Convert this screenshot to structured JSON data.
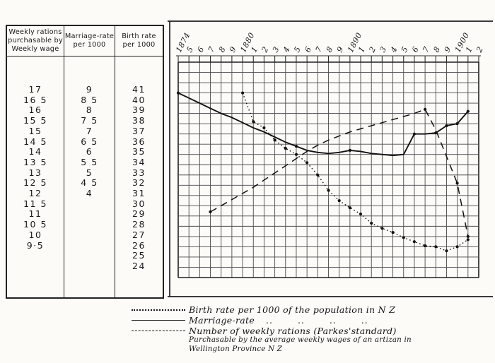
{
  "figure": {
    "description": "Scanned statistical diagram: birth rate, marriage rate and purchasing power of wages, New Zealand 1874-1902",
    "paper_color": "#fcfbf8",
    "ink_color": "#1a1a1a"
  },
  "table": {
    "columns": [
      {
        "header": "Weekly rations\npurchasable by\nWeekly wage",
        "values": [
          "17",
          "16 5",
          "16",
          "15 5",
          "15",
          "14 5",
          "14",
          "13 5",
          "13",
          "12 5",
          "12",
          "11 5",
          "11",
          "10 5",
          "10",
          "9·5"
        ]
      },
      {
        "header": "Marriage-rate\nper 1000",
        "values": [
          "9",
          "8 5",
          "8",
          "7 5",
          "7",
          "6 5",
          "6",
          "5 5",
          "5",
          "4 5",
          "4"
        ]
      },
      {
        "header": "Birth rate\nper 1000",
        "values": [
          "41",
          "40",
          "39",
          "38",
          "37",
          "36",
          "35",
          "34",
          "33",
          "32",
          "31",
          "30",
          "29",
          "28",
          "27",
          "26",
          "25",
          "24"
        ]
      }
    ]
  },
  "chart_data": {
    "type": "line",
    "x_ticks": [
      "1874",
      "5",
      "6",
      "7",
      "8",
      "9",
      "1880",
      "1",
      "2",
      "3",
      "4",
      "5",
      "6",
      "7",
      "8",
      "9",
      "1890",
      "1",
      "2",
      "3",
      "4",
      "5",
      "6",
      "7",
      "8",
      "9",
      "1900",
      "1",
      "2"
    ],
    "x_years": [
      1874,
      1902
    ],
    "grid": {
      "columns": 28,
      "rows": 21,
      "visible": true
    },
    "scales_note": "Grid rows shared by three scales aligned per table row: rations 17..9.5, marriage 9..4, birth 41..24",
    "legend_position": "bottom",
    "series": [
      {
        "name": "Birth rate per 1000",
        "unit": "birth",
        "style": "dotted",
        "dot_years": "all",
        "points": [
          [
            1880,
            41
          ],
          [
            1881,
            38.2
          ],
          [
            1882,
            37.6
          ],
          [
            1883,
            36.4
          ],
          [
            1884,
            35.6
          ],
          [
            1885,
            35
          ],
          [
            1886,
            34.2
          ],
          [
            1887,
            33
          ],
          [
            1888,
            31.5
          ],
          [
            1889,
            30.5
          ],
          [
            1890,
            29.8
          ],
          [
            1891,
            29.2
          ],
          [
            1892,
            28.3
          ],
          [
            1893,
            27.8
          ],
          [
            1894,
            27.4
          ],
          [
            1895,
            26.9
          ],
          [
            1896,
            26.5
          ],
          [
            1897,
            26.1
          ],
          [
            1898,
            26
          ],
          [
            1899,
            25.6
          ],
          [
            1900,
            26
          ],
          [
            1901,
            26.7
          ]
        ]
      },
      {
        "name": "Marriage-rate per 1000",
        "unit": "marriage",
        "style": "solid",
        "dot_years": [
          1874,
          1885,
          1890,
          1896,
          1898,
          1899,
          1900,
          1901
        ],
        "points": [
          [
            1874,
            9
          ],
          [
            1875,
            8.75
          ],
          [
            1876,
            8.5
          ],
          [
            1877,
            8.25
          ],
          [
            1878,
            8
          ],
          [
            1879,
            7.8
          ],
          [
            1880,
            7.55
          ],
          [
            1881,
            7.3
          ],
          [
            1882,
            7.1
          ],
          [
            1883,
            6.85
          ],
          [
            1884,
            6.6
          ],
          [
            1885,
            6.4
          ],
          [
            1886,
            6.2
          ],
          [
            1887,
            6.1
          ],
          [
            1888,
            6.05
          ],
          [
            1889,
            6.1
          ],
          [
            1890,
            6.2
          ],
          [
            1891,
            6.15
          ],
          [
            1892,
            6.05
          ],
          [
            1893,
            6
          ],
          [
            1894,
            5.95
          ],
          [
            1895,
            6
          ],
          [
            1896,
            7
          ],
          [
            1897,
            7
          ],
          [
            1898,
            7.05
          ],
          [
            1899,
            7.4
          ],
          [
            1900,
            7.5
          ],
          [
            1901,
            8.1
          ]
        ]
      },
      {
        "name": "Number of weekly rations (Parkes' standard)",
        "unit": "rations",
        "style": "dashed",
        "dot_years": [
          1877,
          1897,
          1900,
          1901
        ],
        "points": [
          [
            1877,
            11.2
          ],
          [
            1878,
            11.5
          ],
          [
            1879,
            11.8
          ],
          [
            1880,
            12.1
          ],
          [
            1881,
            12.4
          ],
          [
            1882,
            12.75
          ],
          [
            1883,
            13.1
          ],
          [
            1884,
            13.45
          ],
          [
            1885,
            13.8
          ],
          [
            1886,
            14.15
          ],
          [
            1887,
            14.45
          ],
          [
            1888,
            14.7
          ],
          [
            1889,
            14.9
          ],
          [
            1890,
            15.1
          ],
          [
            1891,
            15.25
          ],
          [
            1892,
            15.4
          ],
          [
            1893,
            15.55
          ],
          [
            1894,
            15.7
          ],
          [
            1895,
            15.85
          ],
          [
            1896,
            16
          ],
          [
            1897,
            16.2
          ],
          [
            1898,
            15.2
          ],
          [
            1899,
            13.9
          ],
          [
            1900,
            12.6
          ],
          [
            1901,
            10
          ]
        ]
      }
    ]
  },
  "legend": {
    "items": [
      {
        "style": "dotted",
        "label": "Birth rate per 1000 of the population in N Z"
      },
      {
        "style": "solid",
        "label": "Marriage-rate",
        "dittos": ".. .. .. .."
      },
      {
        "style": "dashed",
        "label": "Number of weekly rations (Parkes'standard)"
      }
    ],
    "footnote_line1": "Purchasable by the average weekly wages of an artizan in",
    "footnote_line2": "Wellington Province N Z"
  }
}
